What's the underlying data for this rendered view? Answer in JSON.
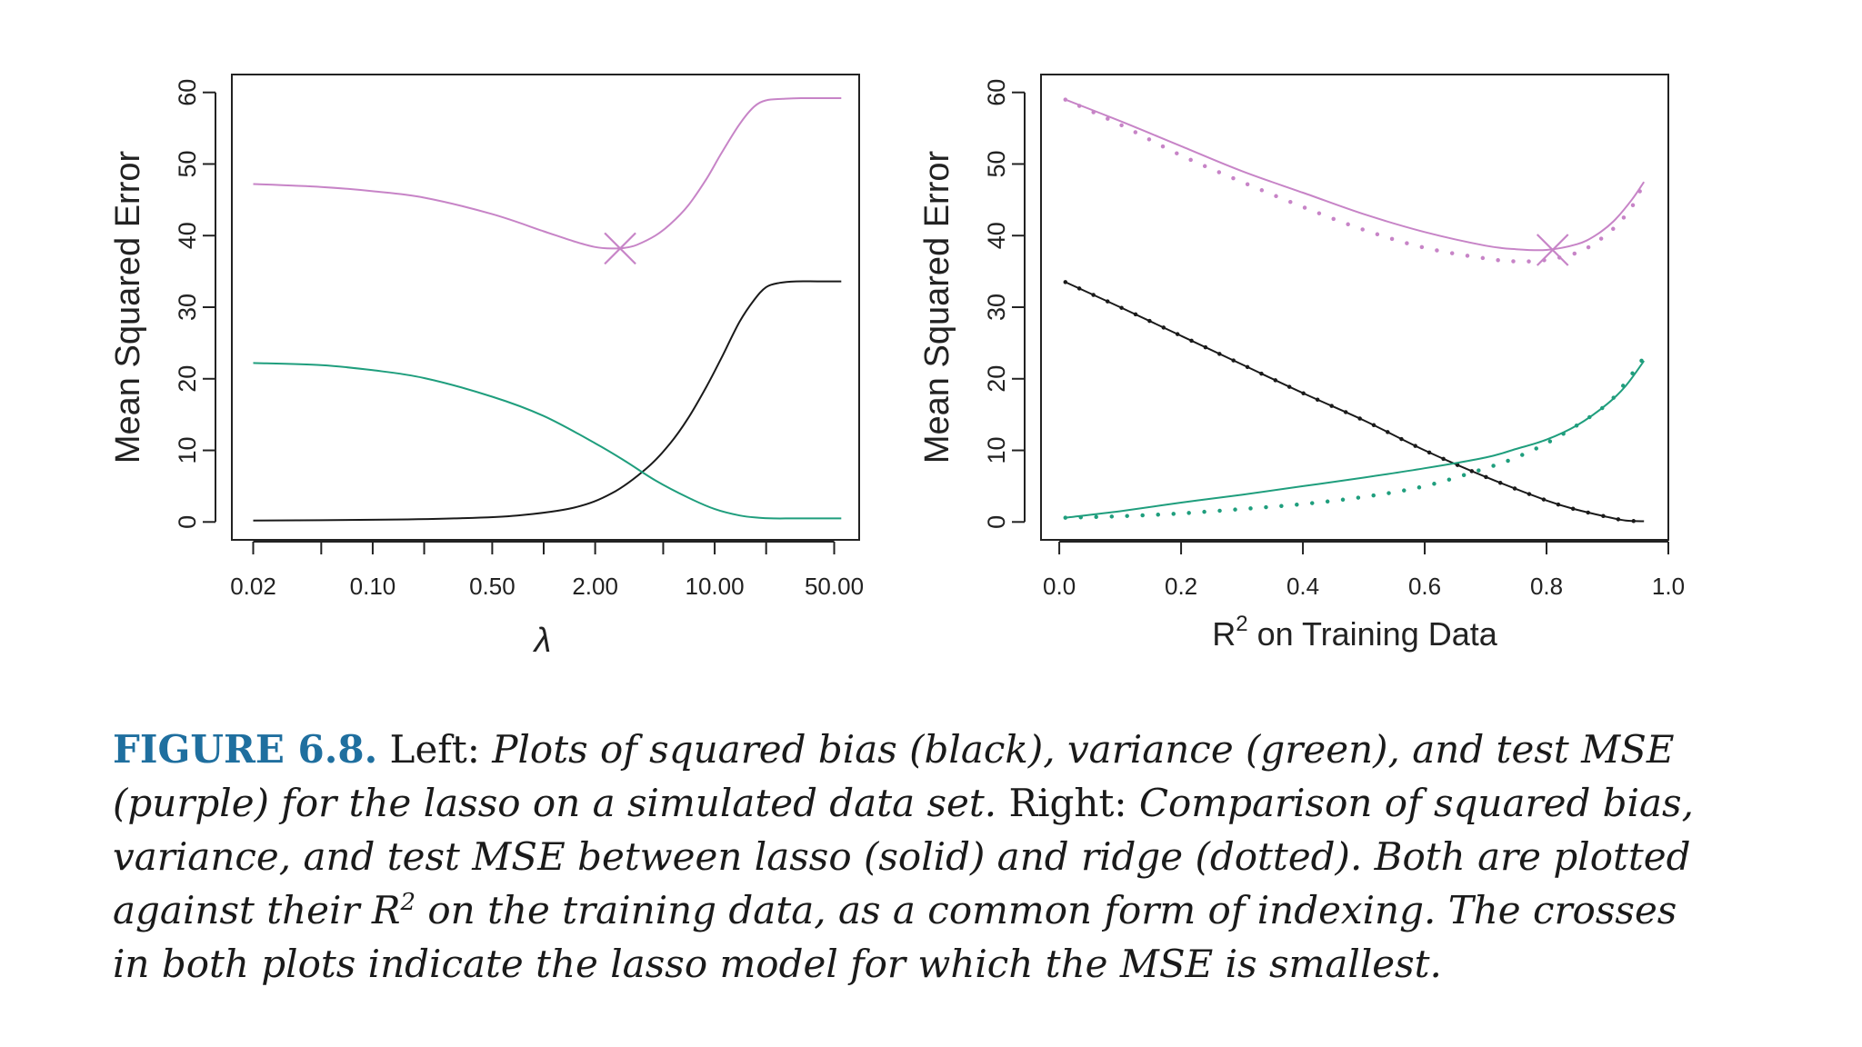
{
  "colors": {
    "bias": "#1a1a1a",
    "variance": "#1f9e7d",
    "test_mse": "#c784c7",
    "axis": "#222222",
    "figure_label": "#1f6f9f"
  },
  "chart_data": [
    {
      "type": "line",
      "id": "left",
      "title": "",
      "xlabel": "λ",
      "ylabel": "Mean Squared Error",
      "x_scale": "log",
      "xlim": [
        0.015,
        70
      ],
      "ylim": [
        -2.5,
        62.5
      ],
      "x_ticks": [
        0.02,
        0.05,
        0.1,
        0.2,
        0.5,
        1.0,
        2.0,
        5.0,
        10.0,
        20.0,
        50.0
      ],
      "x_tick_labels": [
        {
          "value": 0.02,
          "label": "0.02"
        },
        {
          "value": 0.1,
          "label": "0.10"
        },
        {
          "value": 0.5,
          "label": "0.50"
        },
        {
          "value": 2.0,
          "label": "2.00"
        },
        {
          "value": 10.0,
          "label": "10.00"
        },
        {
          "value": 50.0,
          "label": "50.00"
        }
      ],
      "y_ticks": [
        0,
        10,
        20,
        30,
        40,
        50,
        60
      ],
      "y_tick_labels": [
        "0",
        "10",
        "20",
        "30",
        "40",
        "50",
        "60"
      ],
      "series": [
        {
          "name": "squared bias",
          "color_key": "bias",
          "style": "solid",
          "x": [
            0.02,
            0.1,
            0.3,
            0.7,
            1.5,
            2.5,
            4,
            5.5,
            7,
            9,
            11,
            14,
            17,
            20,
            24,
            30,
            40,
            55
          ],
          "y": [
            0.2,
            0.3,
            0.5,
            0.9,
            2.0,
            4.0,
            7.5,
            11,
            14.5,
            19,
            23,
            28,
            31,
            32.8,
            33.4,
            33.6,
            33.6,
            33.6
          ]
        },
        {
          "name": "variance",
          "color_key": "variance",
          "style": "solid",
          "x": [
            0.02,
            0.05,
            0.1,
            0.2,
            0.5,
            1.0,
            2.0,
            3.0,
            4.5,
            7,
            10,
            14,
            18,
            22,
            30,
            55
          ],
          "y": [
            22.2,
            21.9,
            21.2,
            20.1,
            17.5,
            14.8,
            11.0,
            8.5,
            5.8,
            3.4,
            1.8,
            0.9,
            0.6,
            0.5,
            0.5,
            0.5
          ]
        },
        {
          "name": "test MSE",
          "color_key": "test_mse",
          "style": "solid",
          "x": [
            0.02,
            0.05,
            0.1,
            0.2,
            0.5,
            1.0,
            1.5,
            2.0,
            2.5,
            3.0,
            3.5,
            4.5,
            5.5,
            7,
            9,
            11,
            14,
            17,
            20,
            25,
            32,
            55
          ],
          "y": [
            47.2,
            46.8,
            46.2,
            45.3,
            43.0,
            40.6,
            39.2,
            38.4,
            38.2,
            38.3,
            38.7,
            40.0,
            41.6,
            44.2,
            48.0,
            51.6,
            55.6,
            58.0,
            58.9,
            59.1,
            59.2,
            59.2
          ]
        }
      ],
      "markers": [
        {
          "name": "minimum test MSE",
          "x": 2.8,
          "y": 38.2,
          "color_key": "test_mse",
          "shape": "cross"
        }
      ]
    },
    {
      "type": "line",
      "id": "right",
      "title": "",
      "xlabel": "R",
      "xlabel_sup": "2",
      "xlabel_rest": " on Training Data",
      "ylabel": "Mean Squared Error",
      "x_scale": "linear",
      "xlim": [
        -0.03,
        1.0
      ],
      "ylim": [
        -2.5,
        62.5
      ],
      "x_ticks": [
        0.0,
        0.2,
        0.4,
        0.6,
        0.8,
        1.0
      ],
      "x_tick_labels": [
        {
          "value": 0.0,
          "label": "0.0"
        },
        {
          "value": 0.2,
          "label": "0.2"
        },
        {
          "value": 0.4,
          "label": "0.4"
        },
        {
          "value": 0.6,
          "label": "0.6"
        },
        {
          "value": 0.8,
          "label": "0.8"
        },
        {
          "value": 1.0,
          "label": "1.0"
        }
      ],
      "y_ticks": [
        0,
        10,
        20,
        30,
        40,
        50,
        60
      ],
      "y_tick_labels": [
        "0",
        "10",
        "20",
        "30",
        "40",
        "50",
        "60"
      ],
      "series": [
        {
          "name": "lasso squared bias",
          "color_key": "bias",
          "style": "solid",
          "x": [
            0.01,
            0.1,
            0.2,
            0.3,
            0.4,
            0.5,
            0.6,
            0.7,
            0.8,
            0.85,
            0.9,
            0.93,
            0.96
          ],
          "y": [
            33.5,
            30.0,
            26.0,
            22.0,
            18.0,
            14.2,
            10.0,
            6.3,
            3.0,
            1.7,
            0.7,
            0.2,
            0.1
          ]
        },
        {
          "name": "ridge squared bias",
          "color_key": "bias",
          "style": "dotted",
          "x": [
            0.01,
            0.1,
            0.2,
            0.3,
            0.4,
            0.5,
            0.6,
            0.7,
            0.8,
            0.85,
            0.9,
            0.93,
            0.96
          ],
          "y": [
            33.5,
            30.0,
            26.0,
            22.0,
            18.0,
            14.2,
            10.0,
            6.3,
            3.0,
            1.7,
            0.7,
            0.2,
            0.1
          ]
        },
        {
          "name": "lasso variance",
          "color_key": "variance",
          "style": "solid",
          "x": [
            0.01,
            0.1,
            0.2,
            0.3,
            0.4,
            0.5,
            0.6,
            0.7,
            0.75,
            0.8,
            0.85,
            0.9,
            0.93,
            0.96
          ],
          "y": [
            0.6,
            1.5,
            2.7,
            3.8,
            5.0,
            6.2,
            7.5,
            9.0,
            10.2,
            11.5,
            13.5,
            16.5,
            19.0,
            22.5
          ]
        },
        {
          "name": "ridge variance",
          "color_key": "variance",
          "style": "dotted",
          "x": [
            0.01,
            0.1,
            0.2,
            0.3,
            0.4,
            0.5,
            0.6,
            0.7,
            0.75,
            0.8,
            0.85,
            0.9,
            0.93,
            0.96
          ],
          "y": [
            0.6,
            0.8,
            1.2,
            1.8,
            2.5,
            3.5,
            5.0,
            7.5,
            9.0,
            11.0,
            13.5,
            16.5,
            19.5,
            23.0
          ]
        },
        {
          "name": "lasso test MSE",
          "color_key": "test_mse",
          "style": "solid",
          "x": [
            0.01,
            0.1,
            0.2,
            0.3,
            0.4,
            0.5,
            0.6,
            0.7,
            0.75,
            0.8,
            0.85,
            0.88,
            0.91,
            0.94,
            0.96
          ],
          "y": [
            59.0,
            56.0,
            52.5,
            49.0,
            46.0,
            43.0,
            40.5,
            38.6,
            38.1,
            38.0,
            38.8,
            40.0,
            42.0,
            45.0,
            47.5
          ]
        },
        {
          "name": "ridge test MSE",
          "color_key": "test_mse",
          "style": "dotted",
          "x": [
            0.01,
            0.1,
            0.2,
            0.3,
            0.4,
            0.5,
            0.6,
            0.7,
            0.75,
            0.8,
            0.85,
            0.88,
            0.91,
            0.94,
            0.96
          ],
          "y": [
            59.0,
            55.5,
            51.2,
            47.5,
            44.0,
            40.8,
            38.3,
            36.8,
            36.4,
            36.6,
            37.6,
            39.0,
            41.0,
            44.0,
            47.5
          ]
        }
      ],
      "markers": [
        {
          "name": "minimum lasso test MSE",
          "x": 0.81,
          "y": 38.0,
          "color_key": "test_mse",
          "shape": "cross"
        }
      ]
    }
  ],
  "caption": {
    "figure_label": "FIGURE 6.8.",
    "left_word": " Left: ",
    "left_text": "Plots of squared bias (black), variance (green), and test MSE (purple) for the lasso on a simulated data set.",
    "right_word": " Right: ",
    "right_text_1": "Comparison of squared bias, variance, and test MSE between lasso (solid) and ridge (dotted). Both are plotted against their R",
    "right_sup": "2",
    "right_text_2": " on the training data, as a common form of indexing. The crosses in both plots indicate the lasso model for which the MSE is smallest."
  }
}
